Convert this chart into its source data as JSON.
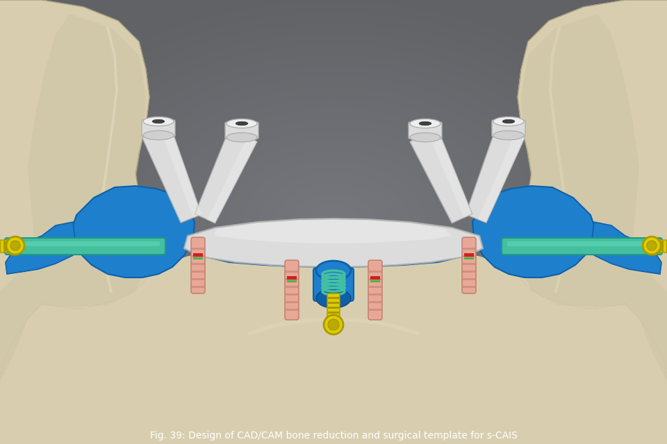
{
  "background_color": "#5a6068",
  "title": "Fig. 39: Design of CAD/CAM bone reduction and surgical template for s-CAIS",
  "title_fontsize": 10,
  "title_color": "#ffffff",
  "figsize": [
    9.6,
    6.4
  ],
  "dpi": 100,
  "bone_color": "#d8ceaf",
  "bone_mid": "#c8c0a0",
  "bone_dark": "#a09878",
  "bone_light": "#e8e0c8",
  "blue_t": "#1e80cc",
  "blue_td": "#0d60a8",
  "blue_dark": "#0a4880",
  "white_guide": "#dcdcdc",
  "white_light": "#eeeeee",
  "white_dark": "#b0b0b0",
  "pink_impl": "#e8a898",
  "pink_dark": "#c07868",
  "red_band": "#cc2222",
  "green_band": "#44bb44",
  "yellow": "#ddcc00",
  "yellow_dark": "#aa9900",
  "teal": "#44c0a0",
  "teal_dark": "#229980",
  "purple": "#8866aa",
  "gray_bg": "#484c54"
}
